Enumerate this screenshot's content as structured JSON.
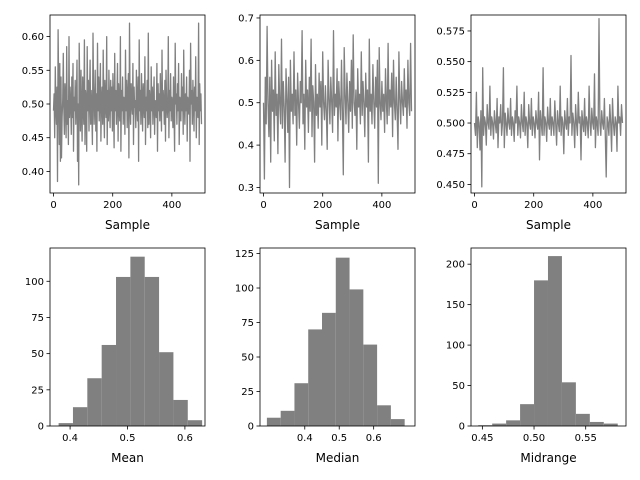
{
  "figure": {
    "series_color": "#808080",
    "background": "#ffffff"
  },
  "chart_data": [
    {
      "type": "line",
      "xlabel": "Sample",
      "xlim": [
        -12,
        512
      ],
      "ylim": [
        0.368,
        0.632
      ],
      "xticks": [
        0,
        200,
        400
      ],
      "xtick_labels": [
        "0",
        "200",
        "400"
      ],
      "yticks": [
        0.4,
        0.45,
        0.5,
        0.55,
        0.6
      ],
      "ytick_labels": [
        "0.40",
        "0.45",
        "0.50",
        "0.55",
        "0.60"
      ],
      "series": [
        {
          "values": [
            0.49,
            0.515,
            0.45,
            0.555,
            0.5,
            0.47,
            0.525,
            0.385,
            0.61,
            0.52,
            0.44,
            0.56,
            0.415,
            0.54,
            0.42,
            0.48,
            0.505,
            0.575,
            0.495,
            0.455,
            0.53,
            0.51,
            0.45,
            0.585,
            0.47,
            0.505,
            0.44,
            0.6,
            0.48,
            0.525,
            0.5,
            0.455,
            0.54,
            0.48,
            0.56,
            0.43,
            0.51,
            0.49,
            0.535,
            0.47,
            0.505,
            0.565,
            0.415,
            0.5,
            0.38,
            0.59,
            0.52,
            0.46,
            0.55,
            0.49,
            0.445,
            0.54,
            0.5,
            0.47,
            0.595,
            0.44,
            0.52,
            0.505,
            0.43,
            0.585,
            0.49,
            0.535,
            0.46,
            0.51,
            0.565,
            0.47,
            0.52,
            0.49,
            0.44,
            0.605,
            0.53,
            0.47,
            0.5,
            0.55,
            0.46,
            0.515,
            0.43,
            0.59,
            0.49,
            0.54,
            0.475,
            0.51,
            0.56,
            0.445,
            0.505,
            0.525,
            0.47,
            0.58,
            0.5,
            0.45,
            0.535,
            0.5,
            0.48,
            0.6,
            0.44,
            0.52,
            0.475,
            0.55,
            0.5,
            0.465,
            0.535,
            0.49,
            0.525,
            0.46,
            0.545,
            0.5,
            0.435,
            0.575,
            0.49,
            0.52,
            0.47,
            0.505,
            0.56,
            0.445,
            0.53,
            0.495,
            0.475,
            0.6,
            0.43,
            0.52,
            0.49,
            0.54,
            0.47,
            0.51,
            0.5,
            0.455,
            0.58,
            0.49,
            0.535,
            0.465,
            0.515,
            0.545,
            0.42,
            0.62,
            0.5,
            0.47,
            0.53,
            0.5,
            0.485,
            0.56,
            0.44,
            0.525,
            0.495,
            0.505,
            0.465,
            0.55,
            0.5,
            0.475,
            0.54,
            0.415,
            0.595,
            0.49,
            0.52,
            0.47,
            0.545,
            0.5,
            0.46,
            0.53,
            0.5,
            0.48,
            0.57,
            0.44,
            0.51,
            0.49,
            0.535,
            0.465,
            0.605,
            0.47,
            0.52,
            0.5,
            0.45,
            0.555,
            0.49,
            0.525,
            0.47,
            0.51,
            0.54,
            0.455,
            0.505,
            0.5,
            0.48,
            0.56,
            0.43,
            0.53,
            0.49,
            0.515,
            0.475,
            0.545,
            0.5,
            0.46,
            0.58,
            0.49,
            0.52,
            0.5,
            0.47,
            0.535,
            0.445,
            0.55,
            0.505,
            0.48,
            0.5,
            0.6,
            0.45,
            0.52,
            0.49,
            0.545,
            0.475,
            0.51,
            0.5,
            0.465,
            0.54,
            0.49,
            0.43,
            0.59,
            0.5,
            0.515,
            0.47,
            0.53,
            0.49,
            0.56,
            0.44,
            0.51,
            0.5,
            0.475,
            0.545,
            0.49,
            0.525,
            0.455,
            0.58,
            0.5,
            0.47,
            0.515,
            0.49,
            0.54,
            0.445,
            0.51,
            0.5,
            0.485,
            0.55,
            0.415,
            0.59,
            0.5,
            0.52,
            0.47,
            0.535,
            0.5,
            0.46,
            0.525,
            0.49,
            0.57,
            0.45,
            0.51,
            0.5,
            0.48,
            0.62,
            0.44,
            0.53,
            0.49,
            0.515,
            0.47
          ],
          "color": "#808080"
        }
      ]
    },
    {
      "type": "line",
      "xlabel": "Sample",
      "xlim": [
        -12,
        512
      ],
      "ylim": [
        0.287,
        0.707
      ],
      "xticks": [
        0,
        200,
        400
      ],
      "xtick_labels": [
        "0",
        "200",
        "400"
      ],
      "yticks": [
        0.3,
        0.4,
        0.5,
        0.6,
        0.7
      ],
      "ytick_labels": [
        "0.3",
        "0.4",
        "0.5",
        "0.6",
        "0.7"
      ],
      "series": [
        {
          "values": [
            0.5,
            0.32,
            0.56,
            0.45,
            0.68,
            0.5,
            0.42,
            0.56,
            0.36,
            0.6,
            0.48,
            0.53,
            0.41,
            0.62,
            0.47,
            0.52,
            0.38,
            0.59,
            0.5,
            0.45,
            0.65,
            0.44,
            0.55,
            0.49,
            0.36,
            0.58,
            0.51,
            0.43,
            0.56,
            0.3,
            0.6,
            0.48,
            0.52,
            0.45,
            0.62,
            0.47,
            0.53,
            0.4,
            0.57,
            0.5,
            0.44,
            0.55,
            0.5,
            0.67,
            0.45,
            0.52,
            0.39,
            0.6,
            0.49,
            0.53,
            0.43,
            0.56,
            0.48,
            0.65,
            0.42,
            0.54,
            0.5,
            0.36,
            0.59,
            0.47,
            0.52,
            0.44,
            0.57,
            0.49,
            0.55,
            0.4,
            0.62,
            0.5,
            0.46,
            0.54,
            0.48,
            0.39,
            0.6,
            0.51,
            0.45,
            0.56,
            0.5,
            0.43,
            0.67,
            0.47,
            0.52,
            0.49,
            0.58,
            0.41,
            0.55,
            0.5,
            0.46,
            0.6,
            0.48,
            0.33,
            0.63,
            0.52,
            0.45,
            0.57,
            0.5,
            0.43,
            0.55,
            0.48,
            0.6,
            0.44,
            0.66,
            0.5,
            0.47,
            0.53,
            0.39,
            0.58,
            0.49,
            0.52,
            0.45,
            0.62,
            0.47,
            0.55,
            0.5,
            0.42,
            0.57,
            0.49,
            0.53,
            0.36,
            0.65,
            0.48,
            0.52,
            0.45,
            0.59,
            0.5,
            0.44,
            0.56,
            0.49,
            0.6,
            0.31,
            0.63,
            0.5,
            0.46,
            0.55,
            0.48,
            0.52,
            0.43,
            0.58,
            0.5,
            0.45,
            0.64,
            0.47,
            0.53,
            0.49,
            0.57,
            0.42,
            0.6,
            0.5,
            0.46,
            0.56,
            0.48,
            0.39,
            0.62,
            0.51,
            0.45,
            0.55,
            0.5,
            0.47,
            0.58,
            0.49,
            0.53,
            0.44,
            0.6,
            0.5,
            0.47,
            0.64,
            0.48
          ],
          "color": "#808080"
        }
      ]
    },
    {
      "type": "line",
      "xlabel": "Sample",
      "xlim": [
        -12,
        512
      ],
      "ylim": [
        0.443,
        0.588
      ],
      "xticks": [
        0,
        200,
        400
      ],
      "xtick_labels": [
        "0",
        "200",
        "400"
      ],
      "yticks": [
        0.45,
        0.475,
        0.5,
        0.525,
        0.55,
        0.575
      ],
      "ytick_labels": [
        "0.450",
        "0.475",
        "0.500",
        "0.525",
        "0.550",
        "0.575"
      ],
      "series": [
        {
          "values": [
            0.5,
            0.49,
            0.525,
            0.48,
            0.505,
            0.5,
            0.478,
            0.51,
            0.448,
            0.545,
            0.49,
            0.505,
            0.5,
            0.482,
            0.515,
            0.5,
            0.495,
            0.53,
            0.49,
            0.505,
            0.5,
            0.487,
            0.51,
            0.5,
            0.492,
            0.52,
            0.48,
            0.505,
            0.5,
            0.515,
            0.49,
            0.5,
            0.545,
            0.48,
            0.508,
            0.5,
            0.49,
            0.512,
            0.5,
            0.495,
            0.52,
            0.49,
            0.505,
            0.5,
            0.485,
            0.51,
            0.5,
            0.53,
            0.49,
            0.505,
            0.5,
            0.488,
            0.515,
            0.5,
            0.493,
            0.525,
            0.49,
            0.505,
            0.5,
            0.48,
            0.515,
            0.5,
            0.495,
            0.52,
            0.49,
            0.505,
            0.5,
            0.488,
            0.51,
            0.5,
            0.495,
            0.525,
            0.47,
            0.51,
            0.5,
            0.49,
            0.545,
            0.49,
            0.505,
            0.5,
            0.485,
            0.513,
            0.5,
            0.495,
            0.52,
            0.49,
            0.505,
            0.5,
            0.49,
            0.518,
            0.5,
            0.482,
            0.51,
            0.5,
            0.493,
            0.53,
            0.49,
            0.505,
            0.5,
            0.475,
            0.51,
            0.5,
            0.495,
            0.52,
            0.49,
            0.505,
            0.5,
            0.555,
            0.49,
            0.508,
            0.5,
            0.48,
            0.515,
            0.5,
            0.49,
            0.525,
            0.5,
            0.505,
            0.47,
            0.51,
            0.5,
            0.493,
            0.52,
            0.49,
            0.505,
            0.5,
            0.488,
            0.53,
            0.5,
            0.49,
            0.512,
            0.5,
            0.495,
            0.54,
            0.48,
            0.505,
            0.5,
            0.49,
            0.585,
            0.5,
            0.49,
            0.51,
            0.5,
            0.495,
            0.52,
            0.49,
            0.456,
            0.505,
            0.5,
            0.49,
            0.515,
            0.5,
            0.477,
            0.52,
            0.5,
            0.49,
            0.505,
            0.5,
            0.477,
            0.53,
            0.5,
            0.505,
            0.49,
            0.515,
            0.5
          ],
          "color": "#808080"
        }
      ]
    },
    {
      "type": "bar",
      "xlabel": "Mean",
      "xlim": [
        0.365,
        0.635
      ],
      "ylim": [
        0,
        123
      ],
      "xticks": [
        0.4,
        0.5,
        0.6
      ],
      "xtick_labels": [
        "0.4",
        "0.5",
        "0.6"
      ],
      "yticks": [
        0,
        25,
        50,
        75,
        100
      ],
      "ytick_labels": [
        "0",
        "25",
        "50",
        "75",
        "100"
      ],
      "bin_edges": [
        0.38,
        0.405,
        0.43,
        0.455,
        0.48,
        0.505,
        0.53,
        0.555,
        0.58,
        0.605,
        0.63
      ],
      "counts": [
        2,
        13,
        33,
        56,
        103,
        117,
        103,
        51,
        18,
        4
      ],
      "color": "#808080"
    },
    {
      "type": "bar",
      "xlabel": "Median",
      "xlim": [
        0.27,
        0.72
      ],
      "ylim": [
        0,
        129
      ],
      "xticks": [
        0.4,
        0.5,
        0.6
      ],
      "xtick_labels": [
        "0.4",
        "0.5",
        "0.6"
      ],
      "yticks": [
        0,
        25,
        50,
        75,
        100,
        125
      ],
      "ytick_labels": [
        "0",
        "25",
        "50",
        "75",
        "100",
        "125"
      ],
      "bin_edges": [
        0.29,
        0.33,
        0.37,
        0.41,
        0.45,
        0.49,
        0.53,
        0.57,
        0.61,
        0.65,
        0.69
      ],
      "counts": [
        6,
        11,
        31,
        70,
        82,
        122,
        99,
        59,
        15,
        5
      ],
      "color": "#808080"
    },
    {
      "type": "bar",
      "xlabel": "Midrange",
      "xlim": [
        0.439,
        0.589
      ],
      "ylim": [
        0,
        220
      ],
      "xticks": [
        0.45,
        0.5,
        0.55
      ],
      "xtick_labels": [
        "0.45",
        "0.50",
        "0.55"
      ],
      "yticks": [
        0,
        50,
        100,
        150,
        200
      ],
      "ytick_labels": [
        "0",
        "50",
        "100",
        "150",
        "200"
      ],
      "bin_edges": [
        0.446,
        0.4595,
        0.473,
        0.4865,
        0.5,
        0.5135,
        0.527,
        0.5405,
        0.554,
        0.5675,
        0.581
      ],
      "counts": [
        1,
        3,
        7,
        27,
        180,
        210,
        54,
        15,
        5,
        3
      ],
      "color": "#808080"
    }
  ]
}
